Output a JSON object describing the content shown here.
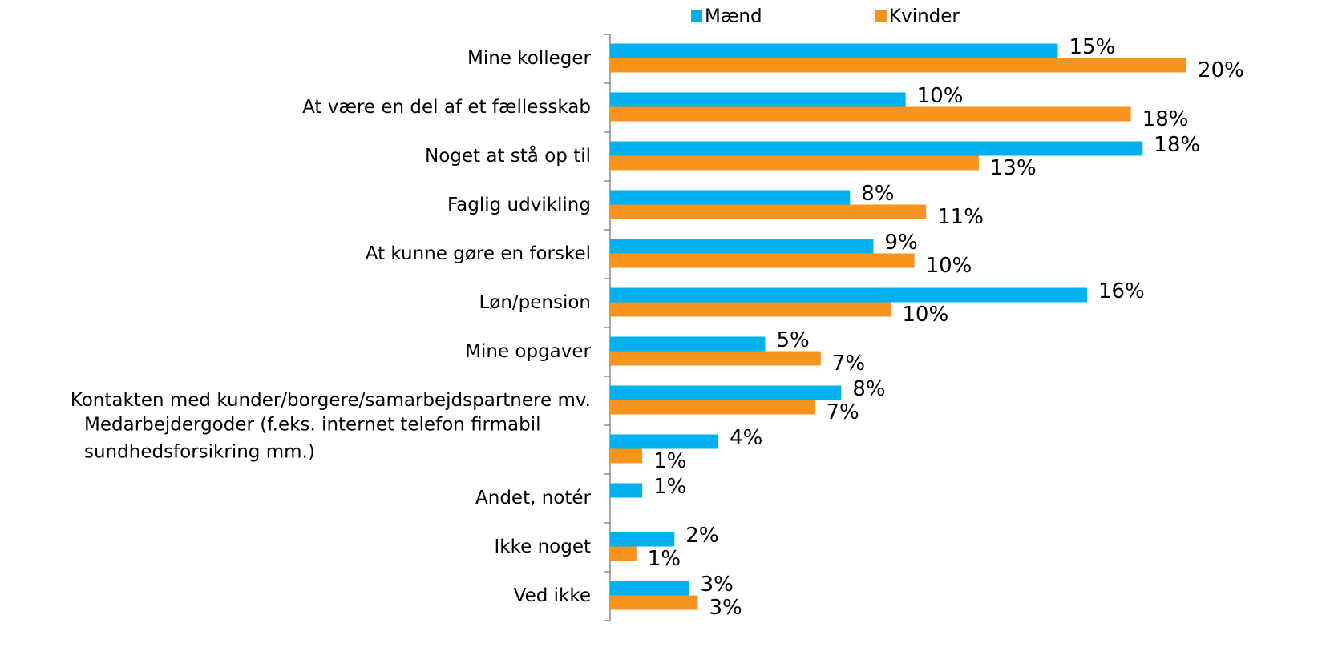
{
  "chart_data": {
    "type": "hbar",
    "categories": [
      "Mine kolleger",
      "At være en del af et fællesskab",
      "Noget at stå op til",
      "Faglig udvikling",
      "At kunne gøre en forskel",
      "Løn/pension",
      "Mine opgaver",
      "Kontakten med kunder/borgere/samarbejdspartnere mv.",
      "Medarbejdergoder (f.eks. internet telefon firmabil sundhedsforsikring mm.)",
      "Andet, notér",
      "Ikke noget",
      "Ved ikke"
    ],
    "series": [
      {
        "name": "Mænd",
        "color": "#00b0f0",
        "values": [
          15.3,
          10.1,
          18.2,
          8.2,
          9.0,
          16.3,
          5.3,
          7.9,
          3.7,
          1.1,
          2.2,
          2.7
        ],
        "value_labels": [
          "15%",
          "10%",
          "18%",
          "8%",
          "9%",
          "16%",
          "5%",
          "8%",
          "4%",
          "1%",
          "2%",
          "3%"
        ]
      },
      {
        "name": "Kvinder",
        "color": "#f7931e",
        "values": [
          19.7,
          17.8,
          12.6,
          10.8,
          10.4,
          9.6,
          7.2,
          7.0,
          1.1,
          null,
          0.9,
          3.0
        ],
        "value_labels": [
          "20%",
          "18%",
          "13%",
          "11%",
          "10%",
          "10%",
          "7%",
          "7%",
          "1%",
          null,
          "1%",
          "3%"
        ]
      }
    ],
    "xlim": [
      0,
      22
    ],
    "legend": "top"
  }
}
